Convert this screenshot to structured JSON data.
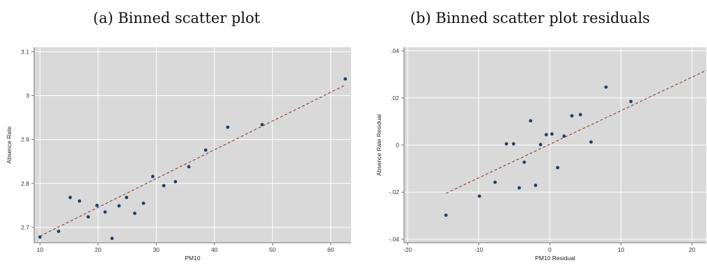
{
  "colors": {
    "plot_bg": "#d9d9d9",
    "grid": "#ffffff",
    "point": "#1f3f66",
    "fit_line": "#8b3a3a",
    "axis": "#555555"
  },
  "chart_data": [
    {
      "type": "scatter",
      "title": "(a) Binned scatter plot",
      "xlabel": "PM10",
      "ylabel": "Absence Rate",
      "xlim": [
        9,
        63.5
      ],
      "ylim": [
        2.665,
        3.11
      ],
      "xticks": [
        10,
        20,
        30,
        40,
        50,
        60
      ],
      "xtick_labels": [
        "10",
        "20",
        "30",
        "40",
        "50",
        "60"
      ],
      "yticks": [
        2.7,
        2.8,
        2.9,
        3.0,
        3.1
      ],
      "ytick_labels": [
        "2.7",
        "2.8",
        "2.9",
        "3",
        "3.1"
      ],
      "grid": true,
      "points": [
        {
          "x": 10.0,
          "y": 2.678
        },
        {
          "x": 13.2,
          "y": 2.691
        },
        {
          "x": 15.2,
          "y": 2.768
        },
        {
          "x": 16.8,
          "y": 2.76
        },
        {
          "x": 18.3,
          "y": 2.724
        },
        {
          "x": 19.8,
          "y": 2.75
        },
        {
          "x": 21.2,
          "y": 2.735
        },
        {
          "x": 22.4,
          "y": 2.675
        },
        {
          "x": 23.6,
          "y": 2.749
        },
        {
          "x": 24.9,
          "y": 2.768
        },
        {
          "x": 26.3,
          "y": 2.732
        },
        {
          "x": 27.8,
          "y": 2.755
        },
        {
          "x": 29.4,
          "y": 2.816
        },
        {
          "x": 31.3,
          "y": 2.795
        },
        {
          "x": 33.3,
          "y": 2.804
        },
        {
          "x": 35.6,
          "y": 2.838
        },
        {
          "x": 38.5,
          "y": 2.876
        },
        {
          "x": 42.3,
          "y": 2.928
        },
        {
          "x": 48.2,
          "y": 2.934
        },
        {
          "x": 62.5,
          "y": 3.038
        }
      ],
      "fit_line": {
        "x": [
          10.0,
          62.5
        ],
        "y": [
          2.68,
          3.024
        ]
      }
    },
    {
      "type": "scatter",
      "title": "(b) Binned scatter plot residuals",
      "xlabel": "PM10 Residual",
      "ylabel": "Absence Rate Residual",
      "xlim": [
        -20.5,
        22
      ],
      "ylim": [
        -0.0415,
        0.0415
      ],
      "xticks": [
        -20,
        -10,
        0,
        10,
        20
      ],
      "xtick_labels": [
        "-20",
        "-10",
        "0",
        "10",
        "20"
      ],
      "yticks": [
        -0.04,
        -0.02,
        0,
        0.02,
        0.04
      ],
      "ytick_labels": [
        "-.04",
        "-.02",
        "0",
        ".02",
        ".04"
      ],
      "grid": true,
      "points": [
        {
          "x": -14.6,
          "y": -0.0298
        },
        {
          "x": -9.9,
          "y": -0.0217
        },
        {
          "x": -7.7,
          "y": -0.0158
        },
        {
          "x": -6.1,
          "y": 0.0005
        },
        {
          "x": -5.1,
          "y": 0.0005
        },
        {
          "x": -4.3,
          "y": -0.0182
        },
        {
          "x": -3.6,
          "y": -0.0073
        },
        {
          "x": -2.7,
          "y": 0.0103
        },
        {
          "x": -2.0,
          "y": -0.0171
        },
        {
          "x": -1.3,
          "y": 0.0002
        },
        {
          "x": -0.5,
          "y": 0.0044
        },
        {
          "x": 0.3,
          "y": 0.0047
        },
        {
          "x": 1.1,
          "y": -0.0096
        },
        {
          "x": 2.0,
          "y": 0.0038
        },
        {
          "x": 3.1,
          "y": 0.0124
        },
        {
          "x": 4.3,
          "y": 0.0129
        },
        {
          "x": 5.8,
          "y": 0.0013
        },
        {
          "x": 7.9,
          "y": 0.0246
        },
        {
          "x": 11.4,
          "y": 0.0185
        }
      ],
      "fit_line": {
        "x": [
          -14.6,
          22.0
        ],
        "y": [
          -0.0205,
          0.0317
        ]
      }
    }
  ]
}
